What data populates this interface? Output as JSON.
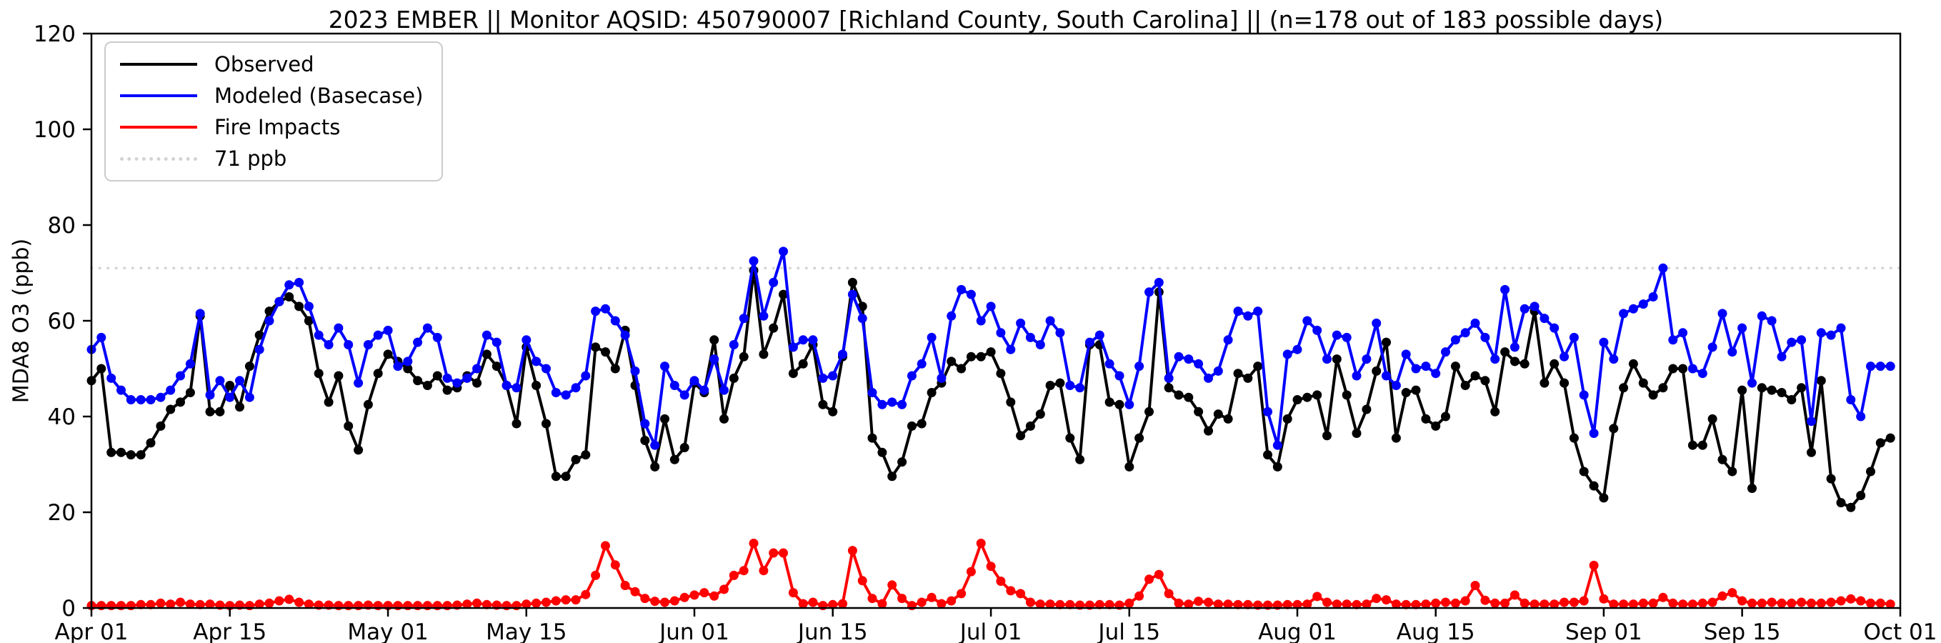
{
  "chart_data": {
    "type": "line",
    "title": "2023 EMBER || Monitor AQSID: 450790007 [Richland County, South Carolina] || (n=178 out of 183 possible days)",
    "ylabel": "MDA8 O3 (ppb)",
    "ylim": [
      0,
      120
    ],
    "yticks": [
      0,
      20,
      40,
      60,
      80,
      100,
      120
    ],
    "x_tick_labels": [
      "Apr 01",
      "Apr 15",
      "May 01",
      "May 15",
      "Jun 01",
      "Jun 15",
      "Jul 01",
      "Jul 15",
      "Aug 01",
      "Aug 15",
      "Sep 01",
      "Sep 15",
      "Oct 01"
    ],
    "x_tick_day_index": [
      0,
      14,
      30,
      44,
      61,
      75,
      91,
      105,
      122,
      136,
      153,
      167,
      183
    ],
    "x_total_days": 183,
    "grid": "off",
    "legend_position": "upper-left",
    "threshold": {
      "label": "71 ppb",
      "value": 71,
      "color": "#d3d3d3"
    },
    "series": [
      {
        "name": "Observed",
        "color": "#000000",
        "values": [
          47.5,
          50,
          32.5,
          32.5,
          32,
          32,
          34.5,
          38,
          41.5,
          43,
          45,
          61,
          41,
          41,
          46.5,
          42,
          50.5,
          57,
          62,
          64,
          65,
          63,
          60,
          49,
          43,
          48.5,
          38,
          33,
          42.5,
          49,
          53,
          51.5,
          50,
          47.5,
          46.5,
          48.5,
          45.5,
          46,
          48.5,
          47,
          53,
          50.5,
          46.5,
          38.5,
          54.5,
          46.5,
          38.5,
          27.5,
          27.5,
          31,
          32,
          54.5,
          53.5,
          50,
          58,
          46.5,
          35,
          29.5,
          39.5,
          31,
          33.5,
          47,
          45,
          56,
          39.5,
          48,
          52.5,
          70.5,
          53,
          58.5,
          65.5,
          49,
          51,
          55,
          42.5,
          41,
          52.5,
          68,
          63,
          35.5,
          32.5,
          27.5,
          30.5,
          38,
          38.5,
          45,
          47,
          51.5,
          50,
          52.5,
          52.5,
          53.5,
          49,
          43,
          36,
          38,
          40.5,
          46.5,
          47,
          35.5,
          31,
          55,
          55,
          43,
          42.5,
          29.5,
          35.5,
          41,
          66,
          46,
          44.5,
          44,
          41,
          37,
          40.5,
          39.5,
          49,
          48,
          50.5,
          32,
          29.5,
          39.5,
          43.5,
          44,
          44.5,
          36,
          52,
          44.5,
          36.5,
          41.5,
          49.5,
          55.5,
          35.5,
          45,
          45.5,
          39.5,
          38,
          40,
          50.5,
          46.5,
          48.5,
          47.5,
          41,
          53.5,
          51.5,
          51,
          62,
          47,
          51,
          47,
          35.5,
          28.5,
          25.5,
          23,
          37.5,
          46,
          51,
          47,
          44.5,
          46,
          50,
          50,
          34,
          34,
          39.5,
          31,
          28.5,
          45.5,
          25,
          46,
          45.5,
          45,
          43.5,
          46,
          32.5,
          47.5,
          27,
          22,
          21,
          23.5,
          28.5,
          34.5,
          35.5
        ]
      },
      {
        "name": "Modeled (Basecase)",
        "color": "#0000ff",
        "values": [
          54,
          56.5,
          48,
          45.5,
          43.5,
          43.5,
          43.5,
          44,
          45.5,
          48.5,
          51,
          61.5,
          44.5,
          47.5,
          44,
          47.5,
          44,
          54,
          60,
          64,
          67.5,
          68,
          63,
          57,
          55,
          58.5,
          55,
          47,
          55,
          57,
          58,
          50.5,
          51.5,
          55.5,
          58.5,
          56.5,
          48,
          47,
          48,
          50,
          57,
          55.5,
          46.5,
          46,
          56,
          51.5,
          50,
          45,
          44.5,
          46,
          48.5,
          62,
          62.5,
          60,
          57,
          49.5,
          38.5,
          34,
          50.5,
          46.5,
          44.5,
          47.5,
          45.5,
          52,
          45.5,
          55,
          60.5,
          72.5,
          61,
          68,
          74.5,
          54.5,
          56,
          56,
          48,
          48.5,
          53,
          65.5,
          60.5,
          45,
          42.5,
          43,
          42.5,
          48.5,
          51,
          56.5,
          48,
          61,
          66.5,
          65.5,
          60,
          63,
          57.5,
          54,
          59.5,
          56.5,
          55,
          60,
          57.5,
          46.5,
          46,
          55.5,
          57,
          51,
          48.5,
          42.5,
          50.5,
          66,
          68,
          48,
          52.5,
          52,
          51,
          48,
          49.5,
          56,
          62,
          61,
          62,
          41,
          34,
          53,
          54,
          60,
          58,
          52,
          57,
          56.5,
          48.5,
          52,
          59.5,
          48.5,
          46.5,
          53,
          50,
          50.5,
          49,
          53.5,
          56,
          57.5,
          59.5,
          56.5,
          52,
          66.5,
          54.5,
          62.5,
          63,
          60.5,
          58.5,
          52.5,
          56.5,
          44.5,
          36.5,
          55.5,
          52,
          61.5,
          62.5,
          63.5,
          65,
          71,
          56,
          57.5,
          50,
          49,
          54.5,
          61.5,
          53.5,
          58.5,
          47,
          61,
          60,
          52.5,
          55.5,
          56,
          39,
          57.5,
          57,
          58.5,
          43.5,
          40,
          50.5,
          50.5,
          50.5
        ]
      },
      {
        "name": "Fire Impacts",
        "color": "#ff0000",
        "values": [
          0.5,
          0.5,
          0.5,
          0.5,
          0.5,
          0.7,
          0.7,
          1,
          0.8,
          1.2,
          0.8,
          0.7,
          0.8,
          0.6,
          0.5,
          0.6,
          0.5,
          0.8,
          1,
          1.5,
          1.8,
          1.2,
          0.8,
          0.6,
          0.6,
          0.5,
          0.5,
          0.5,
          0.6,
          0.5,
          0.5,
          0.5,
          0.5,
          0.5,
          0.5,
          0.5,
          0.5,
          0.6,
          0.8,
          1,
          0.7,
          0.6,
          0.5,
          0.5,
          0.8,
          1,
          1.2,
          1.5,
          1.7,
          1.7,
          2.8,
          6.8,
          13,
          9,
          4.7,
          3.4,
          2,
          1.4,
          1.2,
          1.5,
          2.2,
          2.7,
          3.2,
          2.5,
          3.9,
          6.8,
          7.8,
          13.5,
          7.8,
          11.5,
          11.5,
          3.2,
          0.9,
          1.2,
          0.5,
          0.7,
          0.9,
          12,
          5.7,
          2,
          0.9,
          4.8,
          2,
          0.5,
          1.2,
          2.2,
          0.9,
          1.5,
          3,
          7.6,
          13.5,
          8.7,
          5.6,
          3.6,
          3,
          1.2,
          0.8,
          0.8,
          0.7,
          0.7,
          0.6,
          0.6,
          0.7,
          0.7,
          0.6,
          1,
          2.5,
          6,
          7,
          3,
          1,
          0.8,
          1.4,
          1.2,
          0.8,
          0.8,
          0.7,
          0.7,
          0.6,
          0.6,
          0.6,
          0.7,
          0.7,
          0.8,
          2.4,
          1.2,
          0.8,
          0.8,
          0.7,
          0.8,
          2,
          1.7,
          0.8,
          0.7,
          0.7,
          0.8,
          1,
          1.2,
          1,
          1.5,
          4.7,
          1.6,
          1,
          1,
          2.7,
          1,
          0.8,
          0.8,
          0.8,
          1.2,
          1.2,
          1.5,
          8.9,
          1.9,
          0.8,
          0.8,
          0.8,
          1,
          1,
          2.2,
          1,
          0.8,
          0.8,
          1,
          1.2,
          2.5,
          3.2,
          1.5,
          1,
          1,
          1.2,
          1,
          1,
          1.2,
          1,
          1,
          1.2,
          1.5,
          1.9,
          1.5,
          1,
          1,
          0.8
        ]
      }
    ]
  }
}
